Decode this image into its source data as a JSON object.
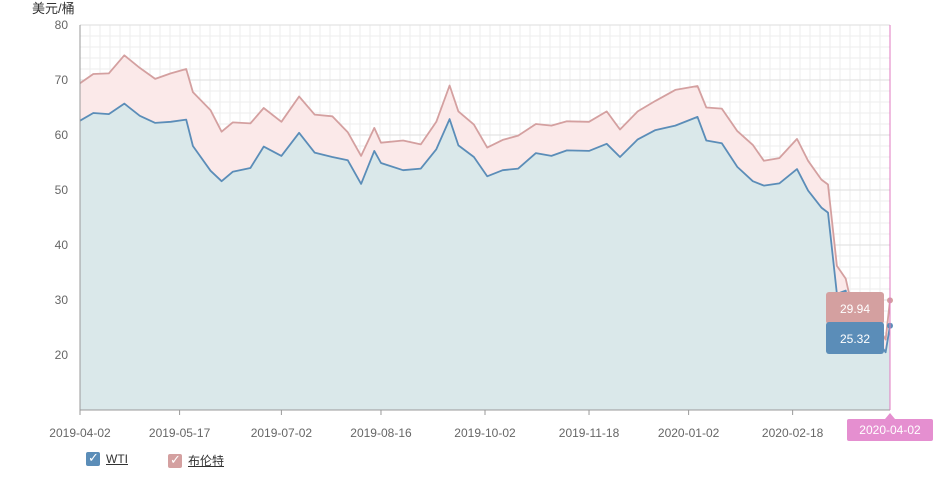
{
  "chart_data": {
    "type": "area",
    "ylabel": "美元/桶",
    "ylim": [
      10,
      80
    ],
    "yticks": [
      20,
      30,
      40,
      50,
      60,
      70,
      80
    ],
    "xlim": [
      "2019-04-02",
      "2020-04-02"
    ],
    "xticks": [
      "2019-04-02",
      "2019-05-17",
      "2019-07-02",
      "2019-08-16",
      "2019-10-02",
      "2019-11-18",
      "2020-01-02",
      "2020-02-18"
    ],
    "crosshair_label": "2020-04-02",
    "grid": true,
    "legend_position": "bottom-left",
    "series": [
      {
        "name": "WTI",
        "color": "#5b8db8",
        "fill": "#d6e8ea",
        "tooltip": "25.32",
        "points": [
          [
            "2019-04-02",
            62.6
          ],
          [
            "2019-04-08",
            64.0
          ],
          [
            "2019-04-15",
            63.8
          ],
          [
            "2019-04-22",
            65.7
          ],
          [
            "2019-04-29",
            63.5
          ],
          [
            "2019-05-06",
            62.2
          ],
          [
            "2019-05-13",
            62.4
          ],
          [
            "2019-05-20",
            62.8
          ],
          [
            "2019-05-23",
            58.0
          ],
          [
            "2019-05-31",
            53.5
          ],
          [
            "2019-06-05",
            51.6
          ],
          [
            "2019-06-10",
            53.3
          ],
          [
            "2019-06-18",
            54.0
          ],
          [
            "2019-06-24",
            57.9
          ],
          [
            "2019-07-02",
            56.2
          ],
          [
            "2019-07-10",
            60.4
          ],
          [
            "2019-07-17",
            56.8
          ],
          [
            "2019-07-25",
            56.0
          ],
          [
            "2019-08-01",
            55.4
          ],
          [
            "2019-08-07",
            51.1
          ],
          [
            "2019-08-13",
            57.1
          ],
          [
            "2019-08-16",
            54.9
          ],
          [
            "2019-08-26",
            53.6
          ],
          [
            "2019-09-03",
            53.9
          ],
          [
            "2019-09-10",
            57.4
          ],
          [
            "2019-09-16",
            62.9
          ],
          [
            "2019-09-20",
            58.1
          ],
          [
            "2019-09-27",
            56.0
          ],
          [
            "2019-10-03",
            52.5
          ],
          [
            "2019-10-10",
            53.6
          ],
          [
            "2019-10-17",
            53.9
          ],
          [
            "2019-10-25",
            56.7
          ],
          [
            "2019-11-01",
            56.2
          ],
          [
            "2019-11-08",
            57.2
          ],
          [
            "2019-11-18",
            57.1
          ],
          [
            "2019-11-26",
            58.4
          ],
          [
            "2019-12-02",
            56.0
          ],
          [
            "2019-12-10",
            59.2
          ],
          [
            "2019-12-18",
            60.9
          ],
          [
            "2019-12-27",
            61.7
          ],
          [
            "2020-01-06",
            63.3
          ],
          [
            "2020-01-10",
            59.0
          ],
          [
            "2020-01-17",
            58.5
          ],
          [
            "2020-01-24",
            54.2
          ],
          [
            "2020-01-31",
            51.6
          ],
          [
            "2020-02-05",
            50.8
          ],
          [
            "2020-02-12",
            51.2
          ],
          [
            "2020-02-20",
            53.8
          ],
          [
            "2020-02-25",
            49.9
          ],
          [
            "2020-03-02",
            46.8
          ],
          [
            "2020-03-05",
            45.9
          ],
          [
            "2020-03-09",
            31.1
          ],
          [
            "2020-03-13",
            31.7
          ],
          [
            "2020-03-18",
            20.4
          ],
          [
            "2020-03-25",
            24.0
          ],
          [
            "2020-03-31",
            20.5
          ],
          [
            "2020-04-02",
            25.32
          ]
        ]
      },
      {
        "name": "布伦特",
        "color": "#d4a0a0",
        "fill": "#fbe9e9",
        "tooltip": "29.94",
        "points": [
          [
            "2019-04-02",
            69.4
          ],
          [
            "2019-04-08",
            71.1
          ],
          [
            "2019-04-15",
            71.2
          ],
          [
            "2019-04-22",
            74.5
          ],
          [
            "2019-04-29",
            72.2
          ],
          [
            "2019-05-06",
            70.2
          ],
          [
            "2019-05-13",
            71.2
          ],
          [
            "2019-05-20",
            72.0
          ],
          [
            "2019-05-23",
            67.8
          ],
          [
            "2019-05-31",
            64.5
          ],
          [
            "2019-06-05",
            60.6
          ],
          [
            "2019-06-10",
            62.3
          ],
          [
            "2019-06-18",
            62.1
          ],
          [
            "2019-06-24",
            64.9
          ],
          [
            "2019-07-02",
            62.4
          ],
          [
            "2019-07-10",
            67.0
          ],
          [
            "2019-07-17",
            63.7
          ],
          [
            "2019-07-25",
            63.4
          ],
          [
            "2019-08-01",
            60.5
          ],
          [
            "2019-08-07",
            56.2
          ],
          [
            "2019-08-13",
            61.3
          ],
          [
            "2019-08-16",
            58.6
          ],
          [
            "2019-08-26",
            59.0
          ],
          [
            "2019-09-03",
            58.3
          ],
          [
            "2019-09-10",
            62.4
          ],
          [
            "2019-09-16",
            69.0
          ],
          [
            "2019-09-20",
            64.3
          ],
          [
            "2019-09-27",
            61.9
          ],
          [
            "2019-10-03",
            57.7
          ],
          [
            "2019-10-10",
            59.1
          ],
          [
            "2019-10-17",
            59.9
          ],
          [
            "2019-10-25",
            62.0
          ],
          [
            "2019-11-01",
            61.7
          ],
          [
            "2019-11-08",
            62.5
          ],
          [
            "2019-11-18",
            62.4
          ],
          [
            "2019-11-26",
            64.3
          ],
          [
            "2019-12-02",
            61.0
          ],
          [
            "2019-12-10",
            64.3
          ],
          [
            "2019-12-18",
            66.2
          ],
          [
            "2019-12-27",
            68.2
          ],
          [
            "2020-01-06",
            68.9
          ],
          [
            "2020-01-10",
            65.0
          ],
          [
            "2020-01-17",
            64.8
          ],
          [
            "2020-01-24",
            60.7
          ],
          [
            "2020-01-31",
            58.2
          ],
          [
            "2020-02-05",
            55.3
          ],
          [
            "2020-02-12",
            55.8
          ],
          [
            "2020-02-20",
            59.3
          ],
          [
            "2020-02-25",
            55.3
          ],
          [
            "2020-03-02",
            51.9
          ],
          [
            "2020-03-05",
            51.0
          ],
          [
            "2020-03-09",
            36.2
          ],
          [
            "2020-03-13",
            33.9
          ],
          [
            "2020-03-18",
            24.9
          ],
          [
            "2020-03-25",
            27.0
          ],
          [
            "2020-03-31",
            22.8
          ],
          [
            "2020-04-02",
            29.94
          ]
        ]
      }
    ]
  }
}
